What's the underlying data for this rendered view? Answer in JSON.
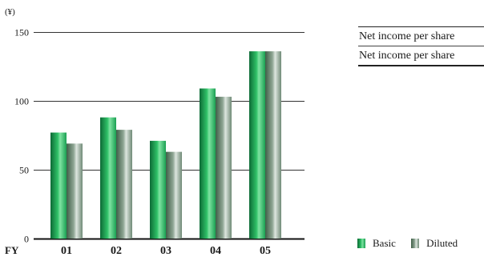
{
  "chart_data": {
    "type": "bar",
    "unit_label": "(¥)",
    "x_prefix": "FY",
    "categories": [
      "01",
      "02",
      "03",
      "04",
      "05"
    ],
    "series": [
      {
        "name": "Basic",
        "values": [
          77,
          88,
          71,
          109,
          136
        ]
      },
      {
        "name": "Diluted",
        "values": [
          69,
          79,
          63,
          103,
          136
        ]
      }
    ],
    "ylim": [
      0,
      150
    ],
    "yticks": [
      0,
      50,
      100,
      150
    ],
    "grid": true,
    "legend_position": "bottom-right",
    "colors": {
      "basic": "#1fae57",
      "diluted": "#8a9e8f"
    }
  },
  "table": {
    "rows": [
      "Net income per share",
      "Net income per share"
    ]
  },
  "legend": {
    "basic": "Basic",
    "diluted": "Diluted"
  }
}
